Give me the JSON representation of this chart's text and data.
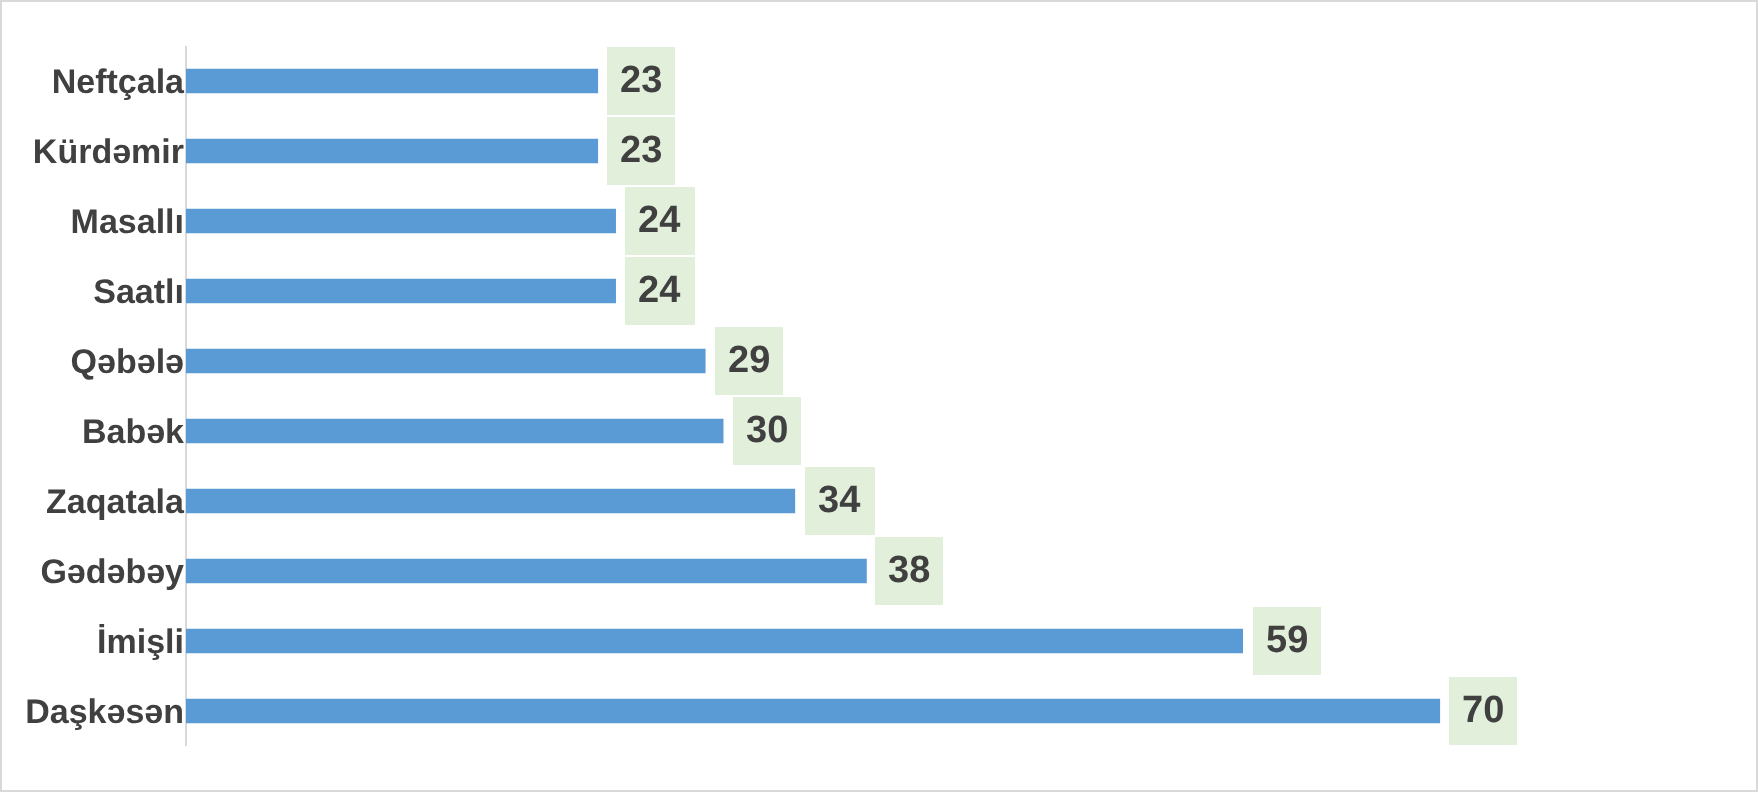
{
  "chart_data": {
    "type": "bar",
    "orientation": "horizontal",
    "categories": [
      "Neftçala",
      "Kürdəmir",
      "Masallı",
      "Saatlı",
      "Qəbələ",
      "Babək",
      "Zaqatala",
      "Gədəbəy",
      "İmişli",
      "Daşkəsən"
    ],
    "values": [
      23,
      23,
      24,
      24,
      29,
      30,
      34,
      38,
      59,
      70
    ],
    "color": "#5b9bd5",
    "data_labels": true,
    "grid": false,
    "legend": false
  }
}
